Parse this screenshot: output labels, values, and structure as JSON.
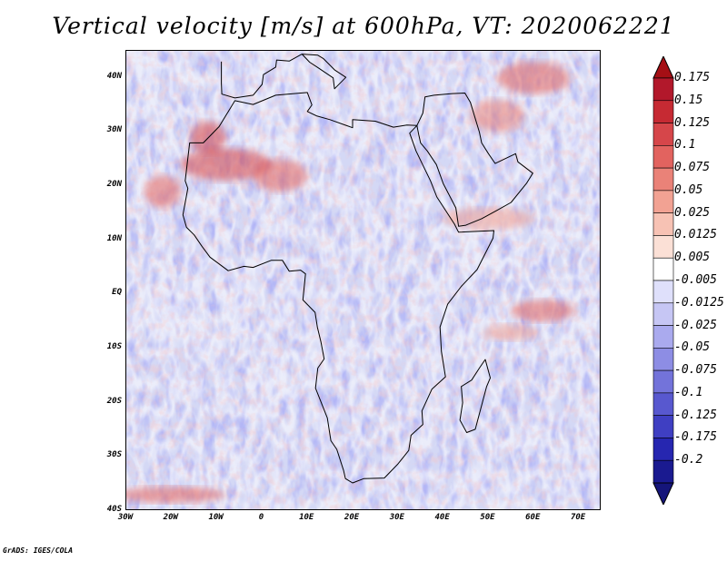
{
  "title": "Vertical velocity [m/s] at 600hPa, VT: 2020062221",
  "credit": "GrADS: IGES/COLA",
  "map": {
    "variable": "Vertical velocity",
    "units": "m/s",
    "level": "600hPa",
    "valid_time": "2020062221",
    "lat_range": [
      -40,
      45
    ],
    "lon_range": [
      -30,
      75
    ],
    "lat_ticks": [
      {
        "value": 40,
        "label": "40N"
      },
      {
        "value": 30,
        "label": "30N"
      },
      {
        "value": 20,
        "label": "20N"
      },
      {
        "value": 10,
        "label": "10N"
      },
      {
        "value": 0,
        "label": "EQ"
      },
      {
        "value": -10,
        "label": "10S"
      },
      {
        "value": -20,
        "label": "20S"
      },
      {
        "value": -30,
        "label": "30S"
      },
      {
        "value": -40,
        "label": "40S"
      }
    ],
    "lon_ticks": [
      {
        "value": -30,
        "label": "30W"
      },
      {
        "value": -20,
        "label": "20W"
      },
      {
        "value": -10,
        "label": "10W"
      },
      {
        "value": 0,
        "label": "0"
      },
      {
        "value": 10,
        "label": "10E"
      },
      {
        "value": 20,
        "label": "20E"
      },
      {
        "value": 30,
        "label": "30E"
      },
      {
        "value": 40,
        "label": "40E"
      },
      {
        "value": 50,
        "label": "50E"
      },
      {
        "value": 60,
        "label": "60E"
      },
      {
        "value": 70,
        "label": "70E"
      }
    ],
    "ocean_color": "#d4d8f5",
    "coast_color": "#000000",
    "africa_outline": [
      [
        -17,
        21
      ],
      [
        -16,
        28
      ],
      [
        -13,
        28
      ],
      [
        -9.5,
        31
      ],
      [
        -6,
        35.8
      ],
      [
        -2,
        35.1
      ],
      [
        3,
        36.8
      ],
      [
        10,
        37.3
      ],
      [
        11,
        35
      ],
      [
        10,
        33.8
      ],
      [
        12,
        33
      ],
      [
        15,
        32.3
      ],
      [
        20,
        30.8
      ],
      [
        20,
        32.3
      ],
      [
        25,
        32
      ],
      [
        29,
        30.9
      ],
      [
        32,
        31.3
      ],
      [
        34.2,
        31.2
      ],
      [
        32.6,
        29.8
      ],
      [
        34,
        26.5
      ],
      [
        37.2,
        21
      ],
      [
        38.6,
        18
      ],
      [
        42.5,
        13
      ],
      [
        43.4,
        11.5
      ],
      [
        51.2,
        11.8
      ],
      [
        51,
        10.4
      ],
      [
        47.5,
        4.6
      ],
      [
        44,
        1.5
      ],
      [
        41,
        -1.8
      ],
      [
        39.3,
        -6
      ],
      [
        39.6,
        -10.5
      ],
      [
        40.5,
        -15.2
      ],
      [
        37.5,
        -17.5
      ],
      [
        35.3,
        -21.5
      ],
      [
        35.5,
        -24
      ],
      [
        32.9,
        -26
      ],
      [
        32.4,
        -28.8
      ],
      [
        30,
        -31.3
      ],
      [
        27,
        -33.9
      ],
      [
        22.5,
        -34
      ],
      [
        20,
        -34.8
      ],
      [
        18.4,
        -34
      ],
      [
        18,
        -32.5
      ],
      [
        16.5,
        -28.6
      ],
      [
        15.2,
        -27
      ],
      [
        14.4,
        -22.8
      ],
      [
        11.8,
        -17.3
      ],
      [
        12.3,
        -13.6
      ],
      [
        13.7,
        -11.9
      ],
      [
        13,
        -8.8
      ],
      [
        12.2,
        -6
      ],
      [
        11.7,
        -3.3
      ],
      [
        9,
        -1
      ],
      [
        9.6,
        3.8
      ],
      [
        8.5,
        4.5
      ],
      [
        6,
        4.3
      ],
      [
        4.5,
        6.3
      ],
      [
        2,
        6.3
      ],
      [
        -2,
        5
      ],
      [
        -4,
        5.2
      ],
      [
        -7.5,
        4.4
      ],
      [
        -11.5,
        6.9
      ],
      [
        -13.3,
        8.9
      ],
      [
        -15,
        11
      ],
      [
        -16.7,
        12.4
      ],
      [
        -17.5,
        14.7
      ],
      [
        -16.4,
        19.6
      ],
      [
        -17,
        21
      ]
    ],
    "madagascar_outline": [
      [
        49.3,
        -12
      ],
      [
        50.4,
        -15.4
      ],
      [
        49.6,
        -17
      ],
      [
        47.1,
        -24.9
      ],
      [
        45.2,
        -25.5
      ],
      [
        43.7,
        -23.2
      ],
      [
        44.3,
        -20
      ],
      [
        44,
        -17
      ],
      [
        46.3,
        -15.8
      ],
      [
        48,
        -13.6
      ],
      [
        49.3,
        -12
      ]
    ],
    "arabia_outline": [
      [
        34.2,
        31.2
      ],
      [
        35.5,
        33.5
      ],
      [
        36,
        36.5
      ],
      [
        38,
        36.8
      ],
      [
        42,
        37.1
      ],
      [
        44.8,
        37.2
      ],
      [
        46,
        35.5
      ],
      [
        48,
        30
      ],
      [
        48.5,
        28
      ],
      [
        50,
        26
      ],
      [
        51.5,
        24.2
      ],
      [
        56,
        26
      ],
      [
        56.5,
        24.5
      ],
      [
        59.8,
        22.4
      ],
      [
        58.4,
        20.5
      ],
      [
        55,
        17
      ],
      [
        52,
        15.6
      ],
      [
        48.5,
        14
      ],
      [
        45,
        12.8
      ],
      [
        43.4,
        12.6
      ],
      [
        42.8,
        16
      ],
      [
        40,
        20.5
      ],
      [
        38.5,
        24
      ],
      [
        36.5,
        26.5
      ],
      [
        35,
        28
      ],
      [
        34.6,
        29.5
      ],
      [
        34.2,
        31.2
      ]
    ],
    "europe_outline": [
      [
        -9,
        43
      ],
      [
        -9,
        39
      ],
      [
        -8.9,
        37
      ],
      [
        -6,
        36.3
      ],
      [
        -2,
        36.8
      ],
      [
        0,
        38.8
      ],
      [
        0.3,
        40.6
      ],
      [
        3,
        42
      ],
      [
        3.2,
        43.3
      ],
      [
        6,
        43.1
      ],
      [
        8.8,
        44.4
      ],
      [
        12.3,
        44.2
      ],
      [
        13.5,
        43.6
      ],
      [
        16,
        41.5
      ],
      [
        18.5,
        40.1
      ],
      [
        16,
        38
      ],
      [
        15.7,
        40
      ],
      [
        12.5,
        41.8
      ],
      [
        10.5,
        42.9
      ],
      [
        8.8,
        44.4
      ]
    ],
    "red_regions": [
      {
        "lon": -8,
        "lat": 24,
        "rx": 10,
        "ry": 3,
        "level": 0.125
      },
      {
        "lon": 4,
        "lat": 22,
        "rx": 6,
        "ry": 3,
        "level": 0.1
      },
      {
        "lon": -12,
        "lat": 29,
        "rx": 4,
        "ry": 3,
        "level": 0.125
      },
      {
        "lon": -22,
        "lat": 19,
        "rx": 4,
        "ry": 3,
        "level": 0.1
      },
      {
        "lon": 62,
        "lat": -3,
        "rx": 7,
        "ry": 2,
        "level": 0.1
      },
      {
        "lon": 55,
        "lat": -7,
        "rx": 6,
        "ry": 1.5,
        "level": 0.05
      },
      {
        "lon": -20,
        "lat": -37,
        "rx": 12,
        "ry": 1.5,
        "level": 0.1
      },
      {
        "lon": 50,
        "lat": 14,
        "rx": 10,
        "ry": 2,
        "level": 0.05
      },
      {
        "lon": 60,
        "lat": 40,
        "rx": 8,
        "ry": 3,
        "level": 0.1
      },
      {
        "lon": 52,
        "lat": 33,
        "rx": 6,
        "ry": 3,
        "level": 0.075
      }
    ]
  },
  "colorbar": {
    "labels": [
      "0.175",
      "0.15",
      "0.125",
      "0.1",
      "0.075",
      "0.05",
      "0.025",
      "0.0125",
      "0.005",
      "-0.005",
      "-0.0125",
      "-0.025",
      "-0.05",
      "-0.075",
      "-0.1",
      "-0.125",
      "-0.175",
      "-0.2"
    ],
    "colors": [
      "#b2182b",
      "#c62a33",
      "#d6464a",
      "#e2635f",
      "#ea8278",
      "#f2a293",
      "#f7c2b4",
      "#fbe0d6",
      "#ffffff",
      "#dfe0fb",
      "#c6c6f4",
      "#aaaaee",
      "#8d8de4",
      "#7373da",
      "#5858cf",
      "#3f3fc2",
      "#2626b0",
      "#1a1a90"
    ],
    "top_arrow_color": "#a50f15",
    "bottom_arrow_color": "#15157a"
  }
}
